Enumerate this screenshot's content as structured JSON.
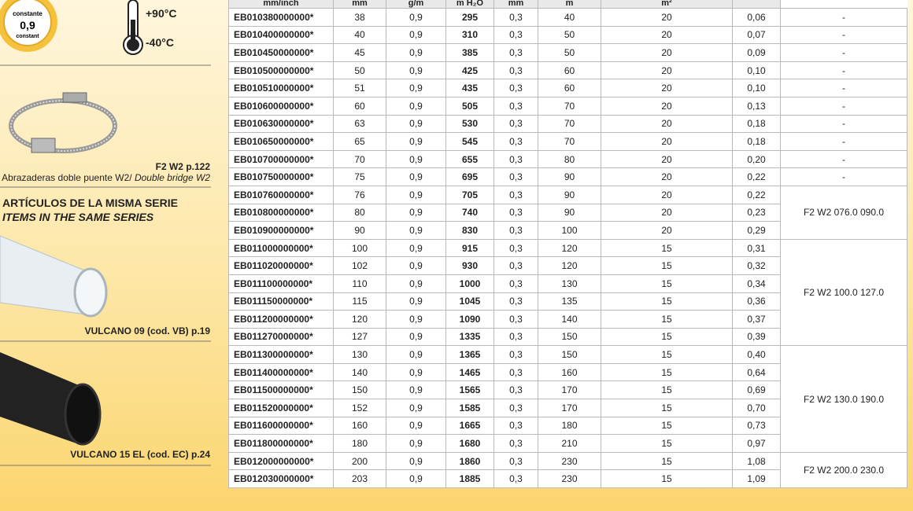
{
  "badge": {
    "top": "constante",
    "value": "0,9",
    "bottom": "constant"
  },
  "temperature": {
    "max": "+90°C",
    "min": "-40°C"
  },
  "clamp": {
    "ref": "F2 W2 p.122",
    "caption": "Abrazaderas doble puente W2/",
    "caption_en": "Double bridge W2"
  },
  "series": {
    "title": "ARTÍCULOS DE LA MISMA SERIE",
    "title_en": "ITEMS IN THE SAME SERIES",
    "items": [
      "VULCANO 09 (cod. VB) p.19",
      "VULCANO 15 EL (cod. EC) p.24"
    ]
  },
  "table": {
    "units": [
      "mm/inch",
      "mm",
      "g/m",
      "m H₂O",
      "mm",
      "m",
      "m²"
    ],
    "rows": [
      [
        "EB010380000000*",
        "38",
        "0,9",
        "295",
        "0,3",
        "40",
        "20",
        "0,06",
        "-"
      ],
      [
        "EB010400000000*",
        "40",
        "0,9",
        "310",
        "0,3",
        "50",
        "20",
        "0,07",
        "-"
      ],
      [
        "EB010450000000*",
        "45",
        "0,9",
        "385",
        "0,3",
        "50",
        "20",
        "0,09",
        "-"
      ],
      [
        "EB010500000000*",
        "50",
        "0,9",
        "425",
        "0,3",
        "60",
        "20",
        "0,10",
        "-"
      ],
      [
        "EB010510000000*",
        "51",
        "0,9",
        "435",
        "0,3",
        "60",
        "20",
        "0,10",
        "-"
      ],
      [
        "EB010600000000*",
        "60",
        "0,9",
        "505",
        "0,3",
        "70",
        "20",
        "0,13",
        "-"
      ],
      [
        "EB010630000000*",
        "63",
        "0,9",
        "530",
        "0,3",
        "70",
        "20",
        "0,18",
        "-"
      ],
      [
        "EB010650000000*",
        "65",
        "0,9",
        "545",
        "0,3",
        "70",
        "20",
        "0,18",
        "-"
      ],
      [
        "EB010700000000*",
        "70",
        "0,9",
        "655",
        "0,3",
        "80",
        "20",
        "0,20",
        "-"
      ],
      [
        "EB010750000000*",
        "75",
        "0,9",
        "695",
        "0,3",
        "90",
        "20",
        "0,22",
        "-"
      ],
      [
        "EB010760000000*",
        "76",
        "0,9",
        "705",
        "0,3",
        "90",
        "20",
        "0,22",
        "F2 W2 076.0 090.0"
      ],
      [
        "EB010800000000*",
        "80",
        "0,9",
        "740",
        "0,3",
        "90",
        "20",
        "0,23"
      ],
      [
        "EB010900000000*",
        "90",
        "0,9",
        "830",
        "0,3",
        "100",
        "20",
        "0,29"
      ],
      [
        "EB011000000000*",
        "100",
        "0,9",
        "915",
        "0,3",
        "120",
        "15",
        "0,31",
        "F2 W2 100.0 127.0"
      ],
      [
        "EB011020000000*",
        "102",
        "0,9",
        "930",
        "0,3",
        "120",
        "15",
        "0,32"
      ],
      [
        "EB011100000000*",
        "110",
        "0,9",
        "1000",
        "0,3",
        "130",
        "15",
        "0,34"
      ],
      [
        "EB011150000000*",
        "115",
        "0,9",
        "1045",
        "0,3",
        "135",
        "15",
        "0,36"
      ],
      [
        "EB011200000000*",
        "120",
        "0,9",
        "1090",
        "0,3",
        "140",
        "15",
        "0,37"
      ],
      [
        "EB011270000000*",
        "127",
        "0,9",
        "1335",
        "0,3",
        "150",
        "15",
        "0,39"
      ],
      [
        "EB011300000000*",
        "130",
        "0,9",
        "1365",
        "0,3",
        "150",
        "15",
        "0,40",
        "F2 W2 130.0 190.0"
      ],
      [
        "EB011400000000*",
        "140",
        "0,9",
        "1465",
        "0,3",
        "160",
        "15",
        "0,64"
      ],
      [
        "EB011500000000*",
        "150",
        "0,9",
        "1565",
        "0,3",
        "170",
        "15",
        "0,69"
      ],
      [
        "EB011520000000*",
        "152",
        "0,9",
        "1585",
        "0,3",
        "170",
        "15",
        "0,70"
      ],
      [
        "EB011600000000*",
        "160",
        "0,9",
        "1665",
        "0,3",
        "180",
        "15",
        "0,73"
      ],
      [
        "EB011800000000*",
        "180",
        "0,9",
        "1680",
        "0,3",
        "210",
        "15",
        "0,97"
      ],
      [
        "EB012000000000*",
        "200",
        "0,9",
        "1860",
        "0,3",
        "230",
        "15",
        "1,08",
        "F2 W2 200.0 230.0"
      ],
      [
        "EB012030000000*",
        "203",
        "0,9",
        "1885",
        "0,3",
        "230",
        "15",
        "1,09"
      ]
    ]
  }
}
